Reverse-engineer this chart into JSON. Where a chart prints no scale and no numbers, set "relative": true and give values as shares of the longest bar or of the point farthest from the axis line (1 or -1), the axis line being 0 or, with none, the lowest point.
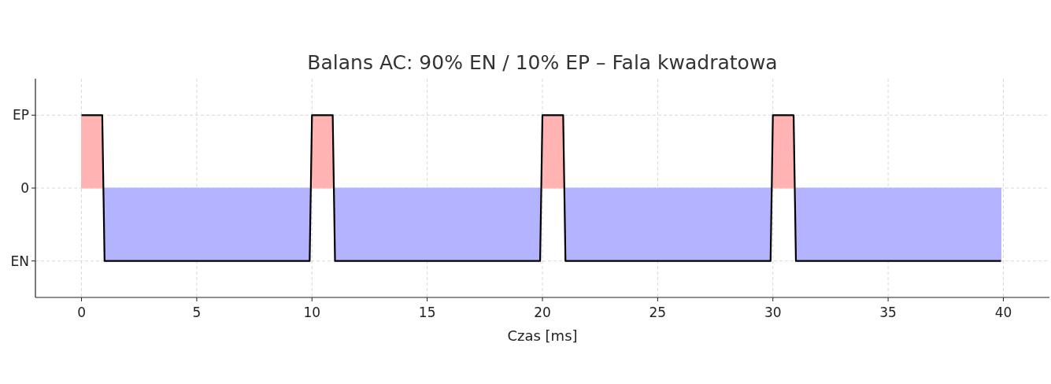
{
  "chart_data": {
    "type": "line",
    "title": "Balans AC: 90% EN / 10% EP – Fala kwadratowa",
    "xlabel": "Czas [ms]",
    "xlim": [
      -2,
      42
    ],
    "xticks": [
      0,
      5,
      10,
      15,
      20,
      25,
      30,
      35,
      40
    ],
    "relative": true,
    "grid": true,
    "annotations": [
      "EP",
      "0",
      "EN"
    ],
    "series": [
      {
        "type": "area",
        "color": "#ffb3b3",
        "x": [
          0,
          0.9,
          0.95,
          10,
          10.9,
          10.95,
          20,
          20.9,
          20.95,
          30,
          30.9
        ],
        "values": [
          1,
          1,
          null,
          1,
          1,
          null,
          1,
          1,
          null,
          1,
          1
        ]
      },
      {
        "type": "area",
        "color": "#b3b3ff",
        "x": [
          1,
          9.9,
          9.95,
          11,
          19.9,
          19.95,
          21,
          29.9,
          29.95,
          31,
          39.9
        ],
        "values": [
          -1,
          -1,
          null,
          -1,
          -1,
          null,
          -1,
          -1,
          null,
          -1,
          -1
        ]
      },
      {
        "color": "#000000",
        "x": [
          0,
          0.9,
          1,
          9.9,
          10,
          10.9,
          11,
          19.9,
          20,
          20.9,
          21,
          29.9,
          30,
          30.9,
          31,
          39.9
        ],
        "values": [
          1,
          1,
          -1,
          -1,
          1,
          1,
          -1,
          -1,
          1,
          1,
          -1,
          -1,
          1,
          1,
          -1,
          -1
        ]
      }
    ]
  }
}
